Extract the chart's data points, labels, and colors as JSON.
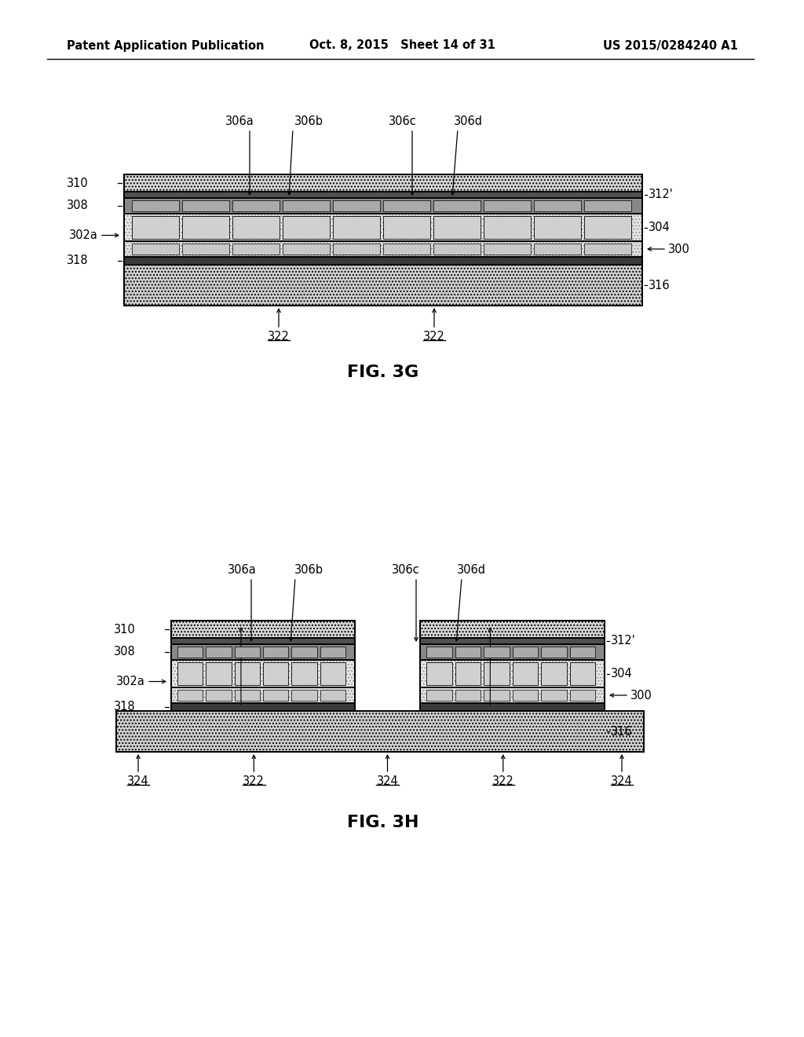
{
  "bg_color": "#ffffff",
  "header_left": "Patent Application Publication",
  "header_mid": "Oct. 8, 2015   Sheet 14 of 31",
  "header_right": "US 2015/0284240 A1",
  "fig_3g_label": "FIG. 3G",
  "fig_3h_label": "FIG. 3H",
  "text_color": "#000000"
}
